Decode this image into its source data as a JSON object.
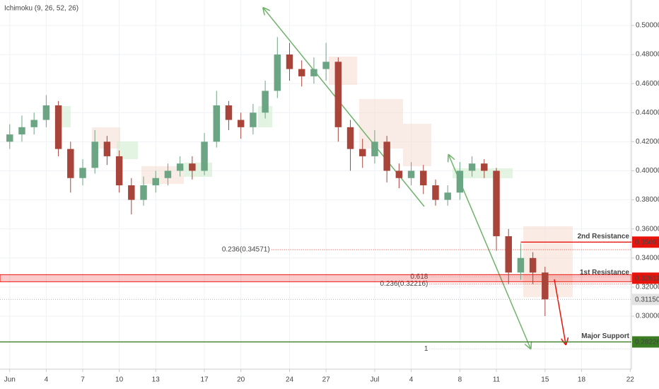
{
  "chart_data": {
    "type": "candlestick",
    "indicator_label": "Ichimoku (9, 26, 52, 26)",
    "x": [
      0,
      1,
      2,
      3,
      4,
      5,
      6,
      7,
      8,
      9,
      10,
      11,
      12,
      13,
      14,
      15,
      16,
      17,
      18,
      19,
      20,
      21,
      22,
      23,
      24,
      25,
      26,
      27,
      28,
      29,
      30,
      31,
      32,
      33,
      34,
      35,
      36,
      37,
      38,
      39,
      40,
      41,
      42,
      43,
      44
    ],
    "open": [
      0.42,
      0.425,
      0.43,
      0.435,
      0.445,
      0.415,
      0.395,
      0.402,
      0.42,
      0.41,
      0.39,
      0.38,
      0.39,
      0.395,
      0.4,
      0.405,
      0.4,
      0.42,
      0.445,
      0.435,
      0.43,
      0.44,
      0.455,
      0.48,
      0.47,
      0.465,
      0.47,
      0.475,
      0.43,
      0.415,
      0.41,
      0.42,
      0.4,
      0.395,
      0.4,
      0.39,
      0.38,
      0.385,
      0.4,
      0.405,
      0.4,
      0.355,
      0.33,
      0.34,
      0.33
    ],
    "high": [
      0.432,
      0.438,
      0.44,
      0.452,
      0.448,
      0.42,
      0.408,
      0.428,
      0.424,
      0.414,
      0.395,
      0.396,
      0.4,
      0.405,
      0.41,
      0.41,
      0.426,
      0.455,
      0.448,
      0.44,
      0.446,
      0.462,
      0.492,
      0.488,
      0.476,
      0.478,
      0.488,
      0.478,
      0.435,
      0.422,
      0.428,
      0.424,
      0.405,
      0.406,
      0.404,
      0.394,
      0.39,
      0.406,
      0.41,
      0.408,
      0.402,
      0.36,
      0.35,
      0.344,
      0.334
    ],
    "low": [
      0.415,
      0.42,
      0.425,
      0.43,
      0.41,
      0.385,
      0.39,
      0.398,
      0.404,
      0.385,
      0.37,
      0.376,
      0.385,
      0.39,
      0.396,
      0.394,
      0.397,
      0.416,
      0.428,
      0.422,
      0.425,
      0.436,
      0.45,
      0.462,
      0.458,
      0.46,
      0.462,
      0.42,
      0.4,
      0.402,
      0.405,
      0.392,
      0.388,
      0.39,
      0.384,
      0.376,
      0.376,
      0.38,
      0.396,
      0.395,
      0.345,
      0.322,
      0.325,
      0.322,
      0.3
    ],
    "close": [
      0.425,
      0.43,
      0.435,
      0.445,
      0.415,
      0.395,
      0.402,
      0.42,
      0.41,
      0.39,
      0.38,
      0.39,
      0.395,
      0.4,
      0.405,
      0.4,
      0.42,
      0.445,
      0.435,
      0.43,
      0.44,
      0.455,
      0.48,
      0.47,
      0.465,
      0.47,
      0.475,
      0.43,
      0.415,
      0.41,
      0.42,
      0.4,
      0.395,
      0.4,
      0.39,
      0.38,
      0.385,
      0.4,
      0.405,
      0.4,
      0.355,
      0.33,
      0.34,
      0.33,
      0.3115
    ],
    "up_color": "#6ba583",
    "down_color": "#a8443a",
    "xlim": [
      -0.8,
      51.1
    ],
    "xticks": [
      {
        "value": 0,
        "label": "Jun"
      },
      {
        "value": 3,
        "label": "4"
      },
      {
        "value": 6,
        "label": "7"
      },
      {
        "value": 9,
        "label": "10"
      },
      {
        "value": 12,
        "label": "13"
      },
      {
        "value": 16,
        "label": "17"
      },
      {
        "value": 19,
        "label": "20"
      },
      {
        "value": 23,
        "label": "24"
      },
      {
        "value": 26,
        "label": "27"
      },
      {
        "value": 30,
        "label": "Jul"
      },
      {
        "value": 33,
        "label": "4"
      },
      {
        "value": 37,
        "label": "8"
      },
      {
        "value": 40,
        "label": "11"
      },
      {
        "value": 44,
        "label": "15"
      },
      {
        "value": 47,
        "label": "18"
      },
      {
        "value": 51,
        "label": "22"
      }
    ],
    "ylim": [
      0.2635,
      0.5175
    ],
    "yticks": [
      {
        "value": 0.3,
        "label": "0.30000"
      },
      {
        "value": 0.32,
        "label": "0.32000"
      },
      {
        "value": 0.34,
        "label": "0.34000"
      },
      {
        "value": 0.36,
        "label": "0.36000"
      },
      {
        "value": 0.38,
        "label": "0.38000"
      },
      {
        "value": 0.4,
        "label": "0.40000"
      },
      {
        "value": 0.42,
        "label": "0.42000"
      },
      {
        "value": 0.44,
        "label": "0.44000"
      },
      {
        "value": 0.46,
        "label": "0.46000"
      },
      {
        "value": 0.48,
        "label": "0.48000"
      },
      {
        "value": 0.5,
        "label": "0.50000"
      }
    ],
    "grid": true,
    "levels": [
      {
        "name": "2nd Resistance",
        "value": 0.35093,
        "color": "#e8140c",
        "style": "line",
        "start": 42
      },
      {
        "name": "1st Resistance",
        "value": 0.32611,
        "color": "#e8140c",
        "style": "band",
        "start": -0.8
      },
      {
        "name": "Major Support",
        "value": 0.28226,
        "color": "#3a7d22",
        "style": "line",
        "start": -0.8
      }
    ],
    "current_price": {
      "value": 0.3115,
      "value_label": "0.31150"
    },
    "fib_lines": [
      {
        "label": "0.236(0.34571)",
        "value": 0.34571,
        "start": 21.5,
        "color": "#e8140c"
      },
      {
        "label": "0.618",
        "value": 0.327,
        "start": 34.5,
        "color": "#bbbbbb"
      },
      {
        "label": "0.236(0.32216)",
        "value": 0.32216,
        "start": 34.5,
        "color": "#e8140c"
      },
      {
        "label": "1",
        "value": 0.2775,
        "start": 34.5,
        "color": "#bbbbbb"
      }
    ]
  }
}
